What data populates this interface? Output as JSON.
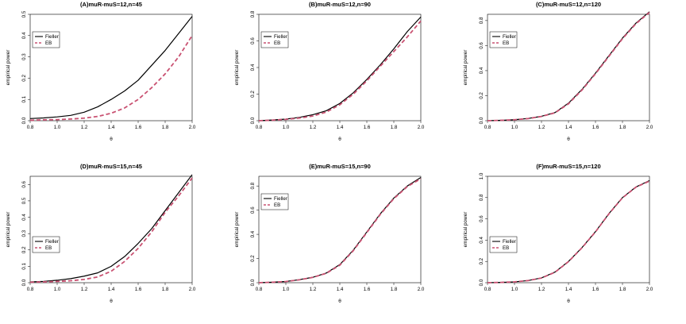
{
  "figure": {
    "ylabel": "empirical power",
    "xlabel": "θ"
  },
  "colors": {
    "fieller": "#000000",
    "eb": "#c95272"
  },
  "chart_data": [
    {
      "type": "line",
      "title": "(A)muR-muS=12,n=45",
      "xlabel": "θ",
      "ylabel": "empirical power",
      "xlim": [
        0.8,
        2.0
      ],
      "ylim": [
        0,
        0.5
      ],
      "xticks": [
        "0.8",
        "1.0",
        "1.2",
        "1.4",
        "1.6",
        "1.8",
        "2.0"
      ],
      "yticks": [
        "0.0",
        "0.1",
        "0.2",
        "0.3",
        "0.4",
        "0.5"
      ],
      "legend": {
        "position": "top-left",
        "entries": [
          "Fieller",
          "EB"
        ]
      },
      "x": [
        0.8,
        0.9,
        1.0,
        1.1,
        1.2,
        1.3,
        1.4,
        1.5,
        1.6,
        1.7,
        1.8,
        1.9,
        2.0
      ],
      "series": [
        {
          "name": "Fieller",
          "values": [
            0.01,
            0.013,
            0.018,
            0.025,
            0.04,
            0.065,
            0.1,
            0.14,
            0.19,
            0.26,
            0.33,
            0.41,
            0.49
          ]
        },
        {
          "name": "EB",
          "values": [
            0.002,
            0.004,
            0.005,
            0.008,
            0.012,
            0.02,
            0.035,
            0.06,
            0.1,
            0.155,
            0.22,
            0.3,
            0.4
          ]
        }
      ]
    },
    {
      "type": "line",
      "title": "(B)muR-muS=12,n=90",
      "xlabel": "θ",
      "ylabel": "empirical power",
      "xlim": [
        0.8,
        2.0
      ],
      "ylim": [
        0,
        0.8
      ],
      "xticks": [
        "0.8",
        "1.0",
        "1.2",
        "1.4",
        "1.6",
        "1.8",
        "2.0"
      ],
      "yticks": [
        "0.0",
        "0.2",
        "0.4",
        "0.6",
        "0.8"
      ],
      "legend": {
        "position": "top-left",
        "entries": [
          "Fieller",
          "EB"
        ]
      },
      "x": [
        0.8,
        0.9,
        1.0,
        1.1,
        1.2,
        1.3,
        1.4,
        1.5,
        1.6,
        1.7,
        1.8,
        1.9,
        2.0
      ],
      "series": [
        {
          "name": "Fieller",
          "values": [
            0.0,
            0.005,
            0.012,
            0.025,
            0.045,
            0.075,
            0.13,
            0.21,
            0.31,
            0.42,
            0.54,
            0.67,
            0.78
          ]
        },
        {
          "name": "EB",
          "values": [
            0.0,
            0.004,
            0.01,
            0.02,
            0.035,
            0.065,
            0.12,
            0.2,
            0.3,
            0.41,
            0.52,
            0.63,
            0.75
          ]
        }
      ]
    },
    {
      "type": "line",
      "title": "(C)muR-muS=12,n=120",
      "xlabel": "θ",
      "ylabel": "empirical power",
      "xlim": [
        0.8,
        2.0
      ],
      "ylim": [
        0,
        0.85
      ],
      "xticks": [
        "0.8",
        "1.0",
        "1.2",
        "1.4",
        "1.6",
        "1.8",
        "2.0"
      ],
      "yticks": [
        "0.0",
        "0.2",
        "0.4",
        "0.6",
        "0.8"
      ],
      "legend": {
        "position": "top-left",
        "entries": [
          "Fieller",
          "EB"
        ]
      },
      "x": [
        0.8,
        0.9,
        1.0,
        1.1,
        1.2,
        1.3,
        1.4,
        1.5,
        1.6,
        1.7,
        1.8,
        1.9,
        2.0
      ],
      "series": [
        {
          "name": "Fieller",
          "values": [
            0.0,
            0.003,
            0.008,
            0.018,
            0.035,
            0.065,
            0.14,
            0.25,
            0.38,
            0.52,
            0.66,
            0.78,
            0.87
          ]
        },
        {
          "name": "EB",
          "values": [
            0.0,
            0.003,
            0.008,
            0.017,
            0.034,
            0.063,
            0.135,
            0.245,
            0.375,
            0.515,
            0.655,
            0.775,
            0.865
          ]
        }
      ]
    },
    {
      "type": "line",
      "title": "(D)muR-muS=15,n=45",
      "xlabel": "θ",
      "ylabel": "empirical power",
      "xlim": [
        0.8,
        2.0
      ],
      "ylim": [
        0,
        0.65
      ],
      "xticks": [
        "0.8",
        "1.0",
        "1.2",
        "1.4",
        "1.6",
        "1.8",
        "2.0"
      ],
      "yticks": [
        "0.0",
        "0.1",
        "0.2",
        "0.3",
        "0.4",
        "0.5",
        "0.6"
      ],
      "legend": {
        "position": "bottom-left",
        "entries": [
          "Fieller",
          "EB"
        ]
      },
      "x": [
        0.8,
        0.9,
        1.0,
        1.1,
        1.2,
        1.3,
        1.4,
        1.5,
        1.6,
        1.7,
        1.8,
        1.9,
        2.0
      ],
      "series": [
        {
          "name": "Fieller",
          "values": [
            0.005,
            0.008,
            0.015,
            0.025,
            0.04,
            0.06,
            0.1,
            0.16,
            0.24,
            0.33,
            0.44,
            0.55,
            0.66
          ]
        },
        {
          "name": "EB",
          "values": [
            0.003,
            0.005,
            0.008,
            0.012,
            0.02,
            0.035,
            0.07,
            0.13,
            0.21,
            0.31,
            0.43,
            0.53,
            0.64
          ]
        }
      ]
    },
    {
      "type": "line",
      "title": "(E)muR-muS=15,n=90",
      "xlabel": "θ",
      "ylabel": "empirical power",
      "xlim": [
        0.8,
        2.0
      ],
      "ylim": [
        0,
        0.88
      ],
      "xticks": [
        "0.8",
        "1.0",
        "1.2",
        "1.4",
        "1.6",
        "1.8",
        "2.0"
      ],
      "yticks": [
        "0.0",
        "0.2",
        "0.4",
        "0.6",
        "0.8"
      ],
      "legend": {
        "position": "top-left",
        "entries": [
          "Fieller",
          "EB"
        ]
      },
      "x": [
        0.8,
        0.9,
        1.0,
        1.1,
        1.2,
        1.3,
        1.4,
        1.5,
        1.6,
        1.7,
        1.8,
        1.9,
        2.0
      ],
      "series": [
        {
          "name": "Fieller",
          "values": [
            0.0,
            0.004,
            0.01,
            0.025,
            0.045,
            0.08,
            0.15,
            0.27,
            0.42,
            0.57,
            0.7,
            0.8,
            0.87
          ]
        },
        {
          "name": "EB",
          "values": [
            0.0,
            0.004,
            0.01,
            0.024,
            0.044,
            0.078,
            0.145,
            0.265,
            0.415,
            0.565,
            0.695,
            0.795,
            0.86
          ]
        }
      ]
    },
    {
      "type": "line",
      "title": "(F)muR-muS=15,n=120",
      "xlabel": "θ",
      "ylabel": "empirical power",
      "xlim": [
        0.8,
        2.0
      ],
      "ylim": [
        0,
        1.0
      ],
      "xticks": [
        "0.8",
        "1.0",
        "1.2",
        "1.4",
        "1.6",
        "1.8",
        "2.0"
      ],
      "yticks": [
        "0.0",
        "0.2",
        "0.4",
        "0.6",
        "0.8",
        "1.0"
      ],
      "legend": {
        "position": "bottom-left",
        "entries": [
          "Fieller",
          "EB"
        ]
      },
      "x": [
        0.8,
        0.9,
        1.0,
        1.1,
        1.2,
        1.3,
        1.4,
        1.5,
        1.6,
        1.7,
        1.8,
        1.9,
        2.0
      ],
      "series": [
        {
          "name": "Fieller",
          "values": [
            0.0,
            0.003,
            0.008,
            0.02,
            0.045,
            0.1,
            0.2,
            0.33,
            0.48,
            0.65,
            0.8,
            0.9,
            0.96
          ]
        },
        {
          "name": "EB",
          "values": [
            0.0,
            0.003,
            0.008,
            0.02,
            0.044,
            0.098,
            0.198,
            0.328,
            0.478,
            0.648,
            0.798,
            0.898,
            0.955
          ]
        }
      ]
    }
  ]
}
